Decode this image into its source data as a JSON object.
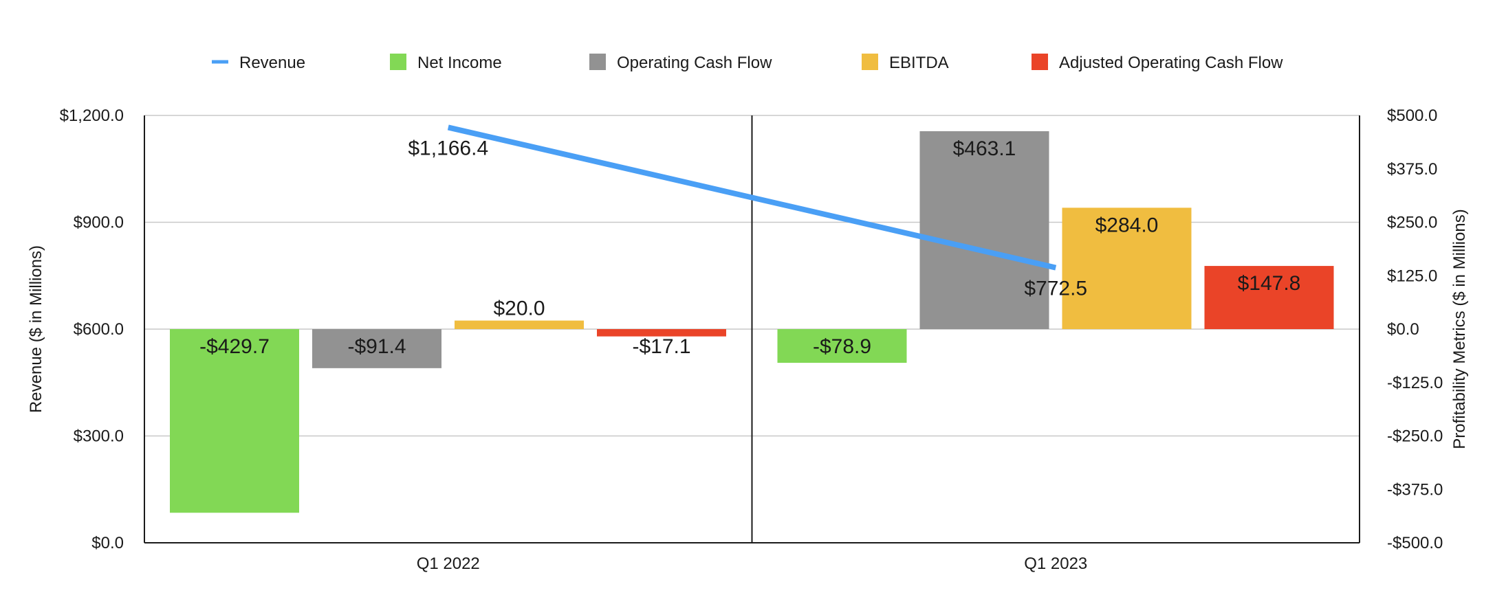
{
  "chart_data": {
    "type": "bar",
    "categories": [
      "Q1 2022",
      "Q1 2023"
    ],
    "line_series": {
      "name": "Revenue",
      "values": [
        1166.4,
        772.5
      ],
      "labels": [
        "$1,166.4",
        "$772.5"
      ],
      "color": "#4a9ff5",
      "axis": "left"
    },
    "series": [
      {
        "name": "Net Income",
        "values": [
          -429.7,
          -78.9
        ],
        "labels": [
          "-$429.7",
          "-$78.9"
        ],
        "color": "#82d855"
      },
      {
        "name": "Operating Cash Flow",
        "values": [
          -91.4,
          463.1
        ],
        "labels": [
          "-$91.4",
          "$463.1"
        ],
        "color": "#929292"
      },
      {
        "name": "EBITDA",
        "values": [
          20.0,
          284.0
        ],
        "labels": [
          "$20.0",
          "$284.0"
        ],
        "color": "#f0bd40"
      },
      {
        "name": "Adjusted Operating Cash Flow",
        "values": [
          -17.1,
          147.8
        ],
        "labels": [
          "-$17.1",
          "$147.8"
        ],
        "color": "#ea4428"
      }
    ],
    "left_axis": {
      "label": "Revenue ($ in Millions)",
      "ylim": [
        0,
        1200
      ],
      "ticks": [
        0,
        300,
        600,
        900,
        1200
      ],
      "tick_labels": [
        "$0.0",
        "$300.0",
        "$600.0",
        "$900.0",
        "$1,200.0"
      ]
    },
    "right_axis": {
      "label": "Profitability Metrics ($ in Millions)",
      "ylim": [
        -500,
        500
      ],
      "ticks": [
        -500,
        -375,
        -250,
        -125,
        0,
        125,
        250,
        375,
        500
      ],
      "tick_labels": [
        "-$500.0",
        "-$375.0",
        "-$250.0",
        "-$125.0",
        "$0.0",
        "$125.0",
        "$250.0",
        "$375.0",
        "$500.0"
      ]
    },
    "legend": [
      "Revenue",
      "Net Income",
      "Operating Cash Flow",
      "EBITDA",
      "Adjusted Operating Cash Flow"
    ],
    "legend_position": "top",
    "grid": true
  }
}
